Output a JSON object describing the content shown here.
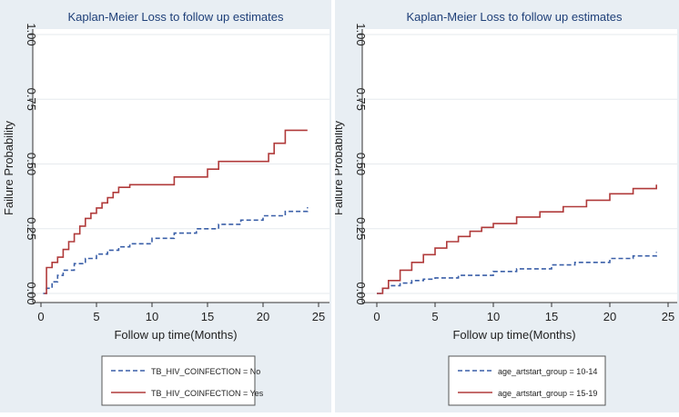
{
  "chart_data": [
    {
      "type": "line",
      "step": true,
      "title": "Kaplan-Meier Loss to follow up estimates",
      "xlabel": "Follow up time(Months)",
      "ylabel": "Failure Probability",
      "xlim": [
        0,
        25
      ],
      "ylim": [
        0,
        1
      ],
      "xticks": [
        0,
        5,
        10,
        15,
        20,
        25
      ],
      "yticks": [
        0,
        0.25,
        0.5,
        0.75,
        1
      ],
      "ytick_labels": [
        "0.00",
        "0.25",
        "0.50",
        "0.75",
        "1.00"
      ],
      "grid": true,
      "legend_position": "bottom",
      "series": [
        {
          "name": "TB_HIV_COINFECTION = No",
          "color": "#3a5fa8",
          "dash": "dashed",
          "x": [
            0.2,
            0.5,
            1,
            1.5,
            2,
            3,
            4,
            5,
            6,
            7,
            8,
            10,
            12,
            14,
            16,
            18,
            20,
            22,
            24
          ],
          "y": [
            0,
            0.02,
            0.045,
            0.07,
            0.09,
            0.115,
            0.135,
            0.152,
            0.167,
            0.18,
            0.192,
            0.213,
            0.233,
            0.25,
            0.267,
            0.283,
            0.3,
            0.317,
            0.333
          ]
        },
        {
          "name": "TB_HIV_COINFECTION = Yes",
          "color": "#b03a3a",
          "dash": "solid",
          "x": [
            0.3,
            0.5,
            1,
            1.5,
            2,
            2.5,
            3,
            3.5,
            4,
            4.5,
            5,
            5.5,
            6,
            6.5,
            7,
            8,
            12,
            15,
            16,
            20.5,
            21,
            22,
            24
          ],
          "y": [
            0,
            0.1,
            0.12,
            0.14,
            0.17,
            0.2,
            0.23,
            0.26,
            0.29,
            0.31,
            0.33,
            0.35,
            0.37,
            0.39,
            0.41,
            0.42,
            0.45,
            0.48,
            0.51,
            0.54,
            0.58,
            0.63,
            0.63
          ]
        }
      ]
    },
    {
      "type": "line",
      "step": true,
      "title": "Kaplan-Meier Loss to follow up estimates",
      "xlabel": "Follow up time(Months)",
      "ylabel": "Failure Probability",
      "xlim": [
        0,
        25
      ],
      "ylim": [
        0,
        1
      ],
      "xticks": [
        0,
        5,
        10,
        15,
        20,
        25
      ],
      "yticks": [
        0,
        0.25,
        0.5,
        0.75,
        1
      ],
      "ytick_labels": [
        "0.00",
        "0.25",
        "0.50",
        "0.75",
        "1.00"
      ],
      "grid": true,
      "legend_position": "bottom",
      "series": [
        {
          "name": "age_artstart_group = 10-14",
          "color": "#3a5fa8",
          "dash": "dashed",
          "x": [
            0,
            0.5,
            1,
            2,
            3,
            4,
            5,
            7,
            10,
            12,
            15,
            17,
            20,
            22,
            24
          ],
          "y": [
            0,
            0.02,
            0.03,
            0.04,
            0.05,
            0.055,
            0.06,
            0.07,
            0.085,
            0.095,
            0.11,
            0.12,
            0.135,
            0.145,
            0.16
          ]
        },
        {
          "name": "age_artstart_group = 15-19",
          "color": "#b03a3a",
          "dash": "solid",
          "x": [
            0,
            0.5,
            1,
            2,
            3,
            4,
            5,
            6,
            7,
            8,
            9,
            10,
            12,
            14,
            16,
            18,
            20,
            22,
            24
          ],
          "y": [
            0,
            0.02,
            0.05,
            0.09,
            0.12,
            0.15,
            0.175,
            0.2,
            0.22,
            0.24,
            0.255,
            0.27,
            0.295,
            0.315,
            0.335,
            0.36,
            0.385,
            0.405,
            0.42
          ]
        }
      ]
    }
  ]
}
